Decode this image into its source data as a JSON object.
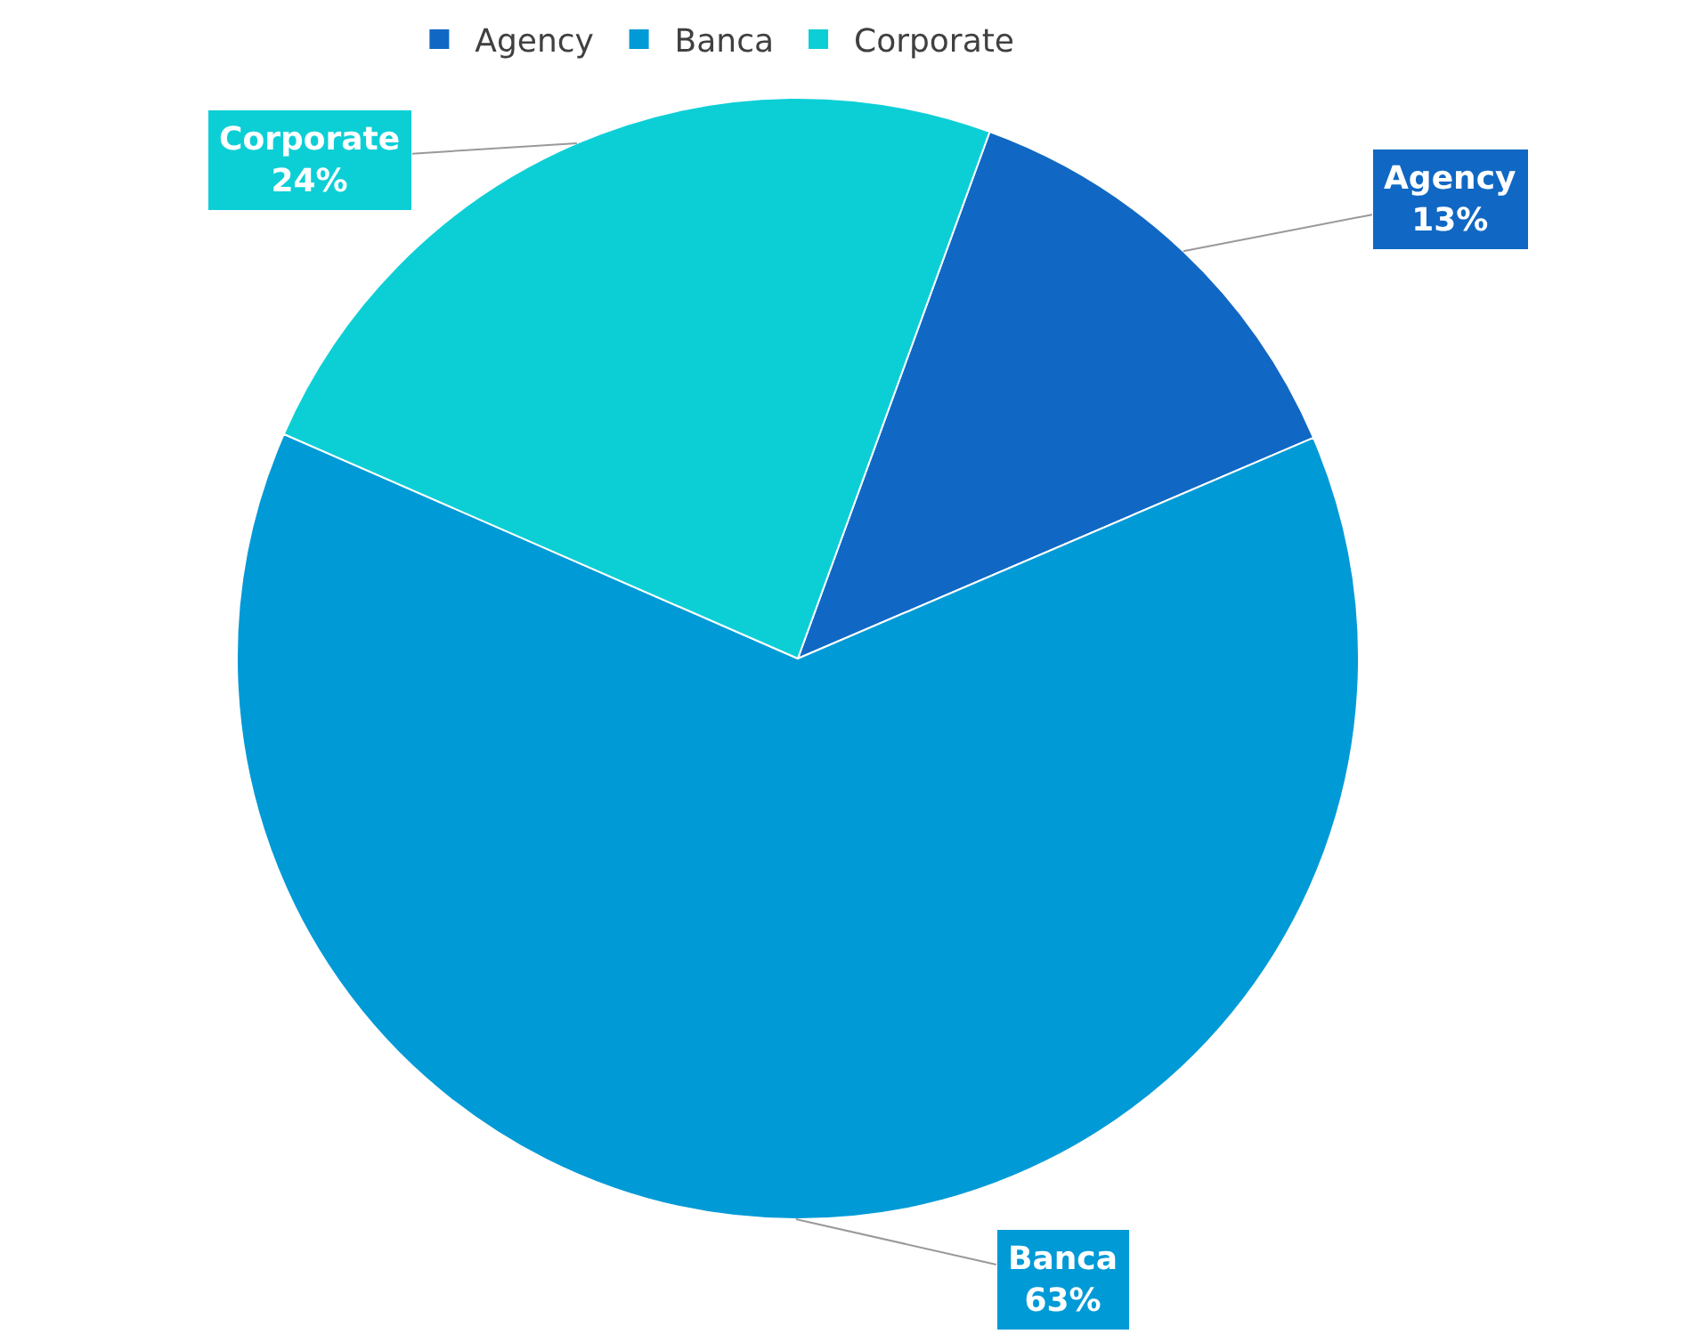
{
  "chart_data": {
    "type": "pie",
    "categories": [
      "Agency",
      "Banca",
      "Corporate"
    ],
    "values": [
      13,
      63,
      24
    ],
    "colors": [
      "#1068c4",
      "#009ad6",
      "#0ccfd6"
    ],
    "legend": "top",
    "value_labels": [
      "13%",
      "63%",
      "24%"
    ]
  }
}
